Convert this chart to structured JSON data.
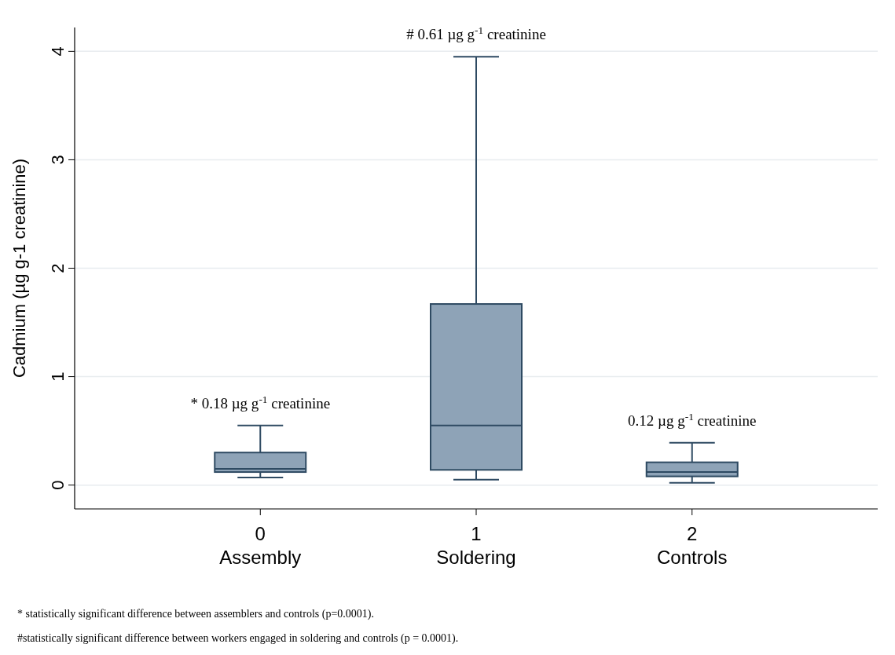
{
  "chart_data": {
    "type": "box",
    "ylabel": "Cadmium (µg g-1 creatinine)",
    "categories": [
      "0\nAssembly",
      "1\nSoldering",
      "2\nControls"
    ],
    "boxes": [
      {
        "low": 0.07,
        "q1": 0.12,
        "median": 0.15,
        "q3": 0.3,
        "high": 0.55
      },
      {
        "low": 0.05,
        "q1": 0.14,
        "median": 0.55,
        "q3": 1.67,
        "high": 3.95
      },
      {
        "low": 0.02,
        "q1": 0.08,
        "median": 0.12,
        "q3": 0.21,
        "high": 0.39
      }
    ],
    "color": "#8ea3b7",
    "ylim": [
      -0.22,
      4.22
    ],
    "yticks": [
      0,
      1,
      2,
      3,
      4
    ],
    "grid": "y",
    "annotations": [
      {
        "text": "* 0.18 µg g$^{-1}$ creatinine",
        "x": "0\nAssembly",
        "y": 0.55
      },
      {
        "text": "#  0.61 µg g$^{-1}$ creatinine",
        "x": "1\nSoldering",
        "y": 3.95
      },
      {
        "text": "0.12 µg g$^{-1}$ creatinine",
        "x": "2\nControls",
        "y": 0.39
      },
      "* statistically significant difference between assemblers and controls (p=0.0001).",
      "#statistically significant difference between workers engaged in soldering and controls (p = 0.0001)."
    ]
  }
}
